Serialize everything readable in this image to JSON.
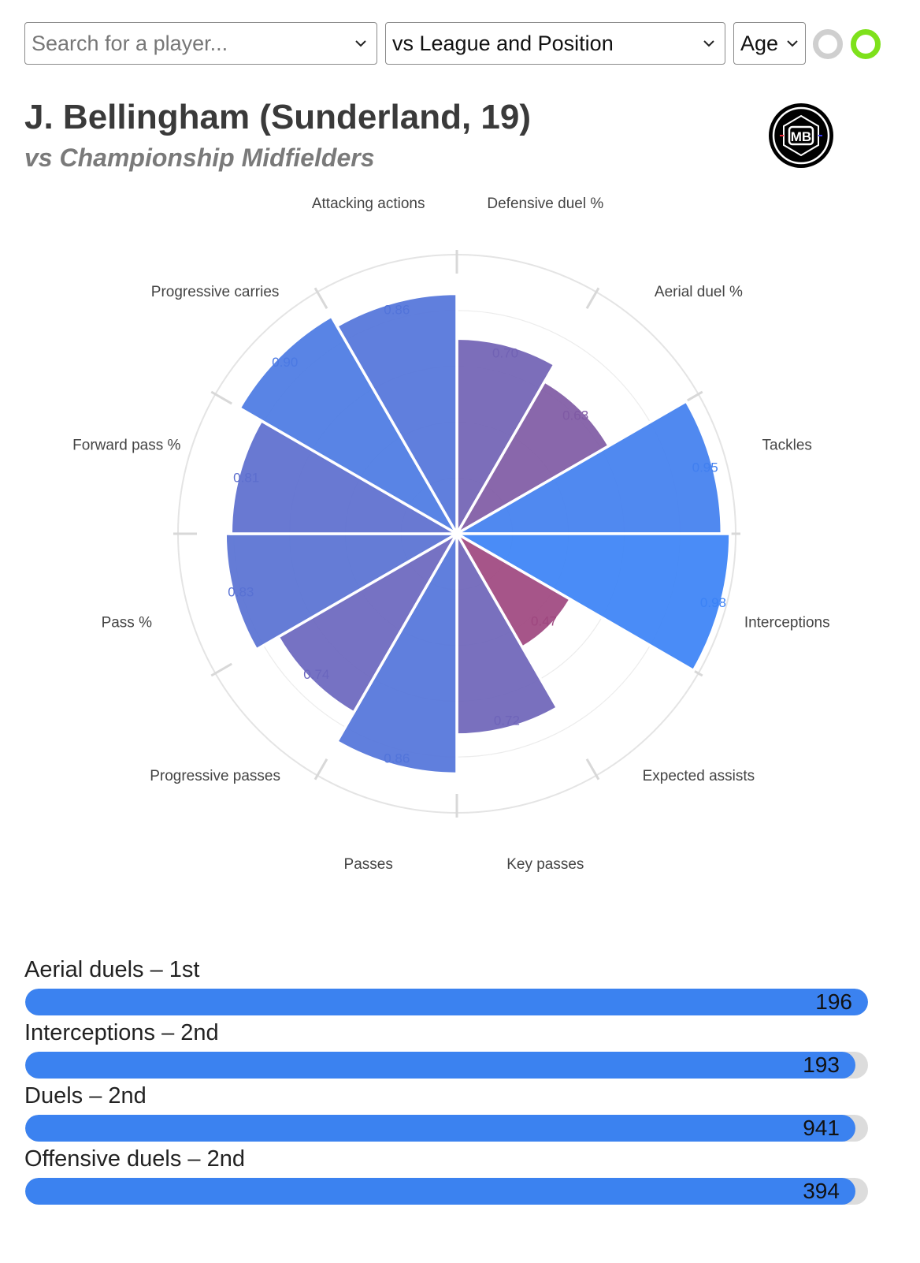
{
  "controls": {
    "search_placeholder": "Search for a player...",
    "comparison": "vs League and Position",
    "age": "Age",
    "toggle_off_color": "#cfcfcf",
    "toggle_on_color": "#7ee11b"
  },
  "header": {
    "title": "J. Bellingham (Sunderland, 19)",
    "subtitle": "vs Championship Midfielders",
    "logo_text": "MB"
  },
  "chart_data": {
    "type": "polar-bar",
    "rmax": 1.0,
    "grid": true,
    "categories": [
      {
        "label": "Defensive duel %",
        "value": 0.7
      },
      {
        "label": "Aerial duel %",
        "value": 0.63
      },
      {
        "label": "Tackles",
        "value": 0.95
      },
      {
        "label": "Interceptions",
        "value": 0.98
      },
      {
        "label": "Expected assists",
        "value": 0.47
      },
      {
        "label": "Key passes",
        "value": 0.72
      },
      {
        "label": "Passes",
        "value": 0.86
      },
      {
        "label": "Progressive passes",
        "value": 0.74
      },
      {
        "label": "Pass %",
        "value": 0.83
      },
      {
        "label": "Forward pass %",
        "value": 0.81
      },
      {
        "label": "Progressive carries",
        "value": 0.9
      },
      {
        "label": "Attacking actions",
        "value": 0.86
      }
    ],
    "color_low": "#a2457a",
    "color_high": "#3b82f6"
  },
  "ranks": [
    {
      "label": "Aerial duels – 1st",
      "value": "196",
      "fraction": 1.0
    },
    {
      "label": "Interceptions – 2nd",
      "value": "193",
      "fraction": 0.985
    },
    {
      "label": "Duels – 2nd",
      "value": "941",
      "fraction": 0.985
    },
    {
      "label": "Offensive duels – 2nd",
      "value": "394",
      "fraction": 0.985
    }
  ]
}
